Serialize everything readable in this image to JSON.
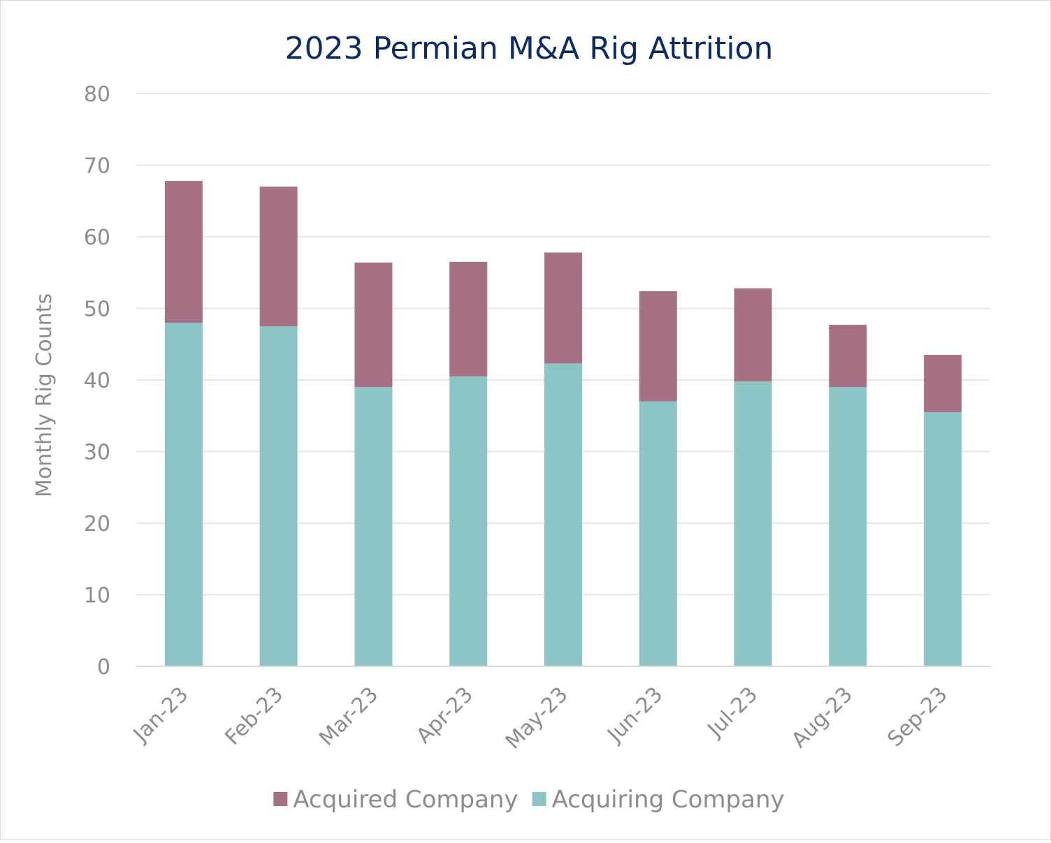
{
  "chart_data": {
    "type": "bar",
    "stacked": true,
    "title": "2023 Permian M&A Rig Attrition",
    "xlabel": "",
    "ylabel": "Monthly Rig Counts",
    "ylim": [
      0,
      80
    ],
    "yticks": [
      0,
      10,
      20,
      30,
      40,
      50,
      60,
      70,
      80
    ],
    "grid": true,
    "legend_position": "bottom",
    "categories": [
      "Jan-23",
      "Feb-23",
      "Mar-23",
      "Apr-23",
      "May-23",
      "Jun-23",
      "Jul-23",
      "Aug-23",
      "Sep-23"
    ],
    "series": [
      {
        "name": "Acquiring Company",
        "color": "#8dc4c6",
        "values": [
          48,
          47.5,
          39,
          40.5,
          42.3,
          37,
          39.8,
          39,
          35.5
        ]
      },
      {
        "name": "Acquired Company",
        "color": "#a67185",
        "values": [
          19.8,
          19.5,
          17.4,
          16,
          15.5,
          15.4,
          13,
          8.7,
          8
        ]
      }
    ],
    "legend_order": [
      "Acquired Company",
      "Acquiring Company"
    ]
  }
}
